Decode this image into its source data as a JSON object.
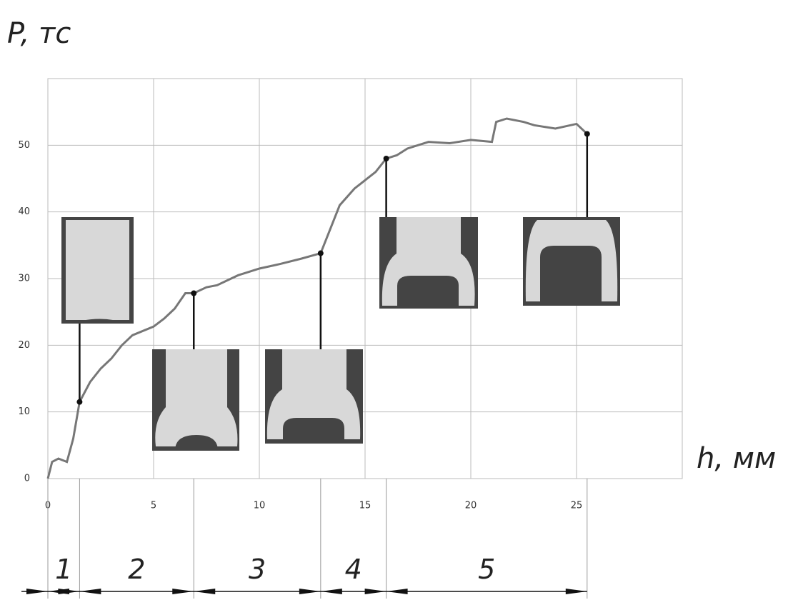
{
  "chart_data": {
    "type": "line",
    "y_label": "P, тс",
    "x_label": "h, мм",
    "xlim": [
      0,
      30
    ],
    "ylim": [
      0,
      60
    ],
    "xticks": [
      0,
      5,
      10,
      15,
      20,
      25
    ],
    "yticks": [
      0,
      10,
      20,
      30,
      40,
      50
    ],
    "grid": true,
    "x": [
      0,
      0.2,
      0.5,
      0.9,
      1.2,
      1.5,
      2,
      2.5,
      3,
      3.5,
      4,
      5,
      5.5,
      6,
      6.5,
      6.9,
      7.5,
      8,
      9,
      10,
      11,
      12,
      12.9,
      13.3,
      13.8,
      14.5,
      15.5,
      16,
      16.5,
      17,
      17.5,
      18,
      19,
      20,
      21,
      21.2,
      21.7,
      22.5,
      23,
      24,
      25,
      25.5
    ],
    "series": [
      {
        "color": "#777777",
        "values": [
          0,
          2.5,
          3,
          2.5,
          6,
          11.5,
          14.5,
          16.5,
          18,
          20,
          21.5,
          22.8,
          24,
          25.5,
          27.8,
          27.8,
          28.7,
          29,
          30.5,
          31.5,
          32.2,
          33,
          33.8,
          37,
          41,
          43.5,
          46,
          48,
          48.5,
          49.5,
          50,
          50.5,
          50.3,
          50.8,
          50.5,
          53.5,
          54,
          53.5,
          53,
          52.5,
          53.2,
          51.7
        ]
      }
    ],
    "markers": {
      "x": [
        1.5,
        6.9,
        12.9,
        16,
        25.5
      ],
      "values": [
        11.5,
        27.8,
        33.8,
        48,
        51.7
      ]
    },
    "stage_labels": [
      "1",
      "2",
      "3",
      "4",
      "5"
    ]
  }
}
